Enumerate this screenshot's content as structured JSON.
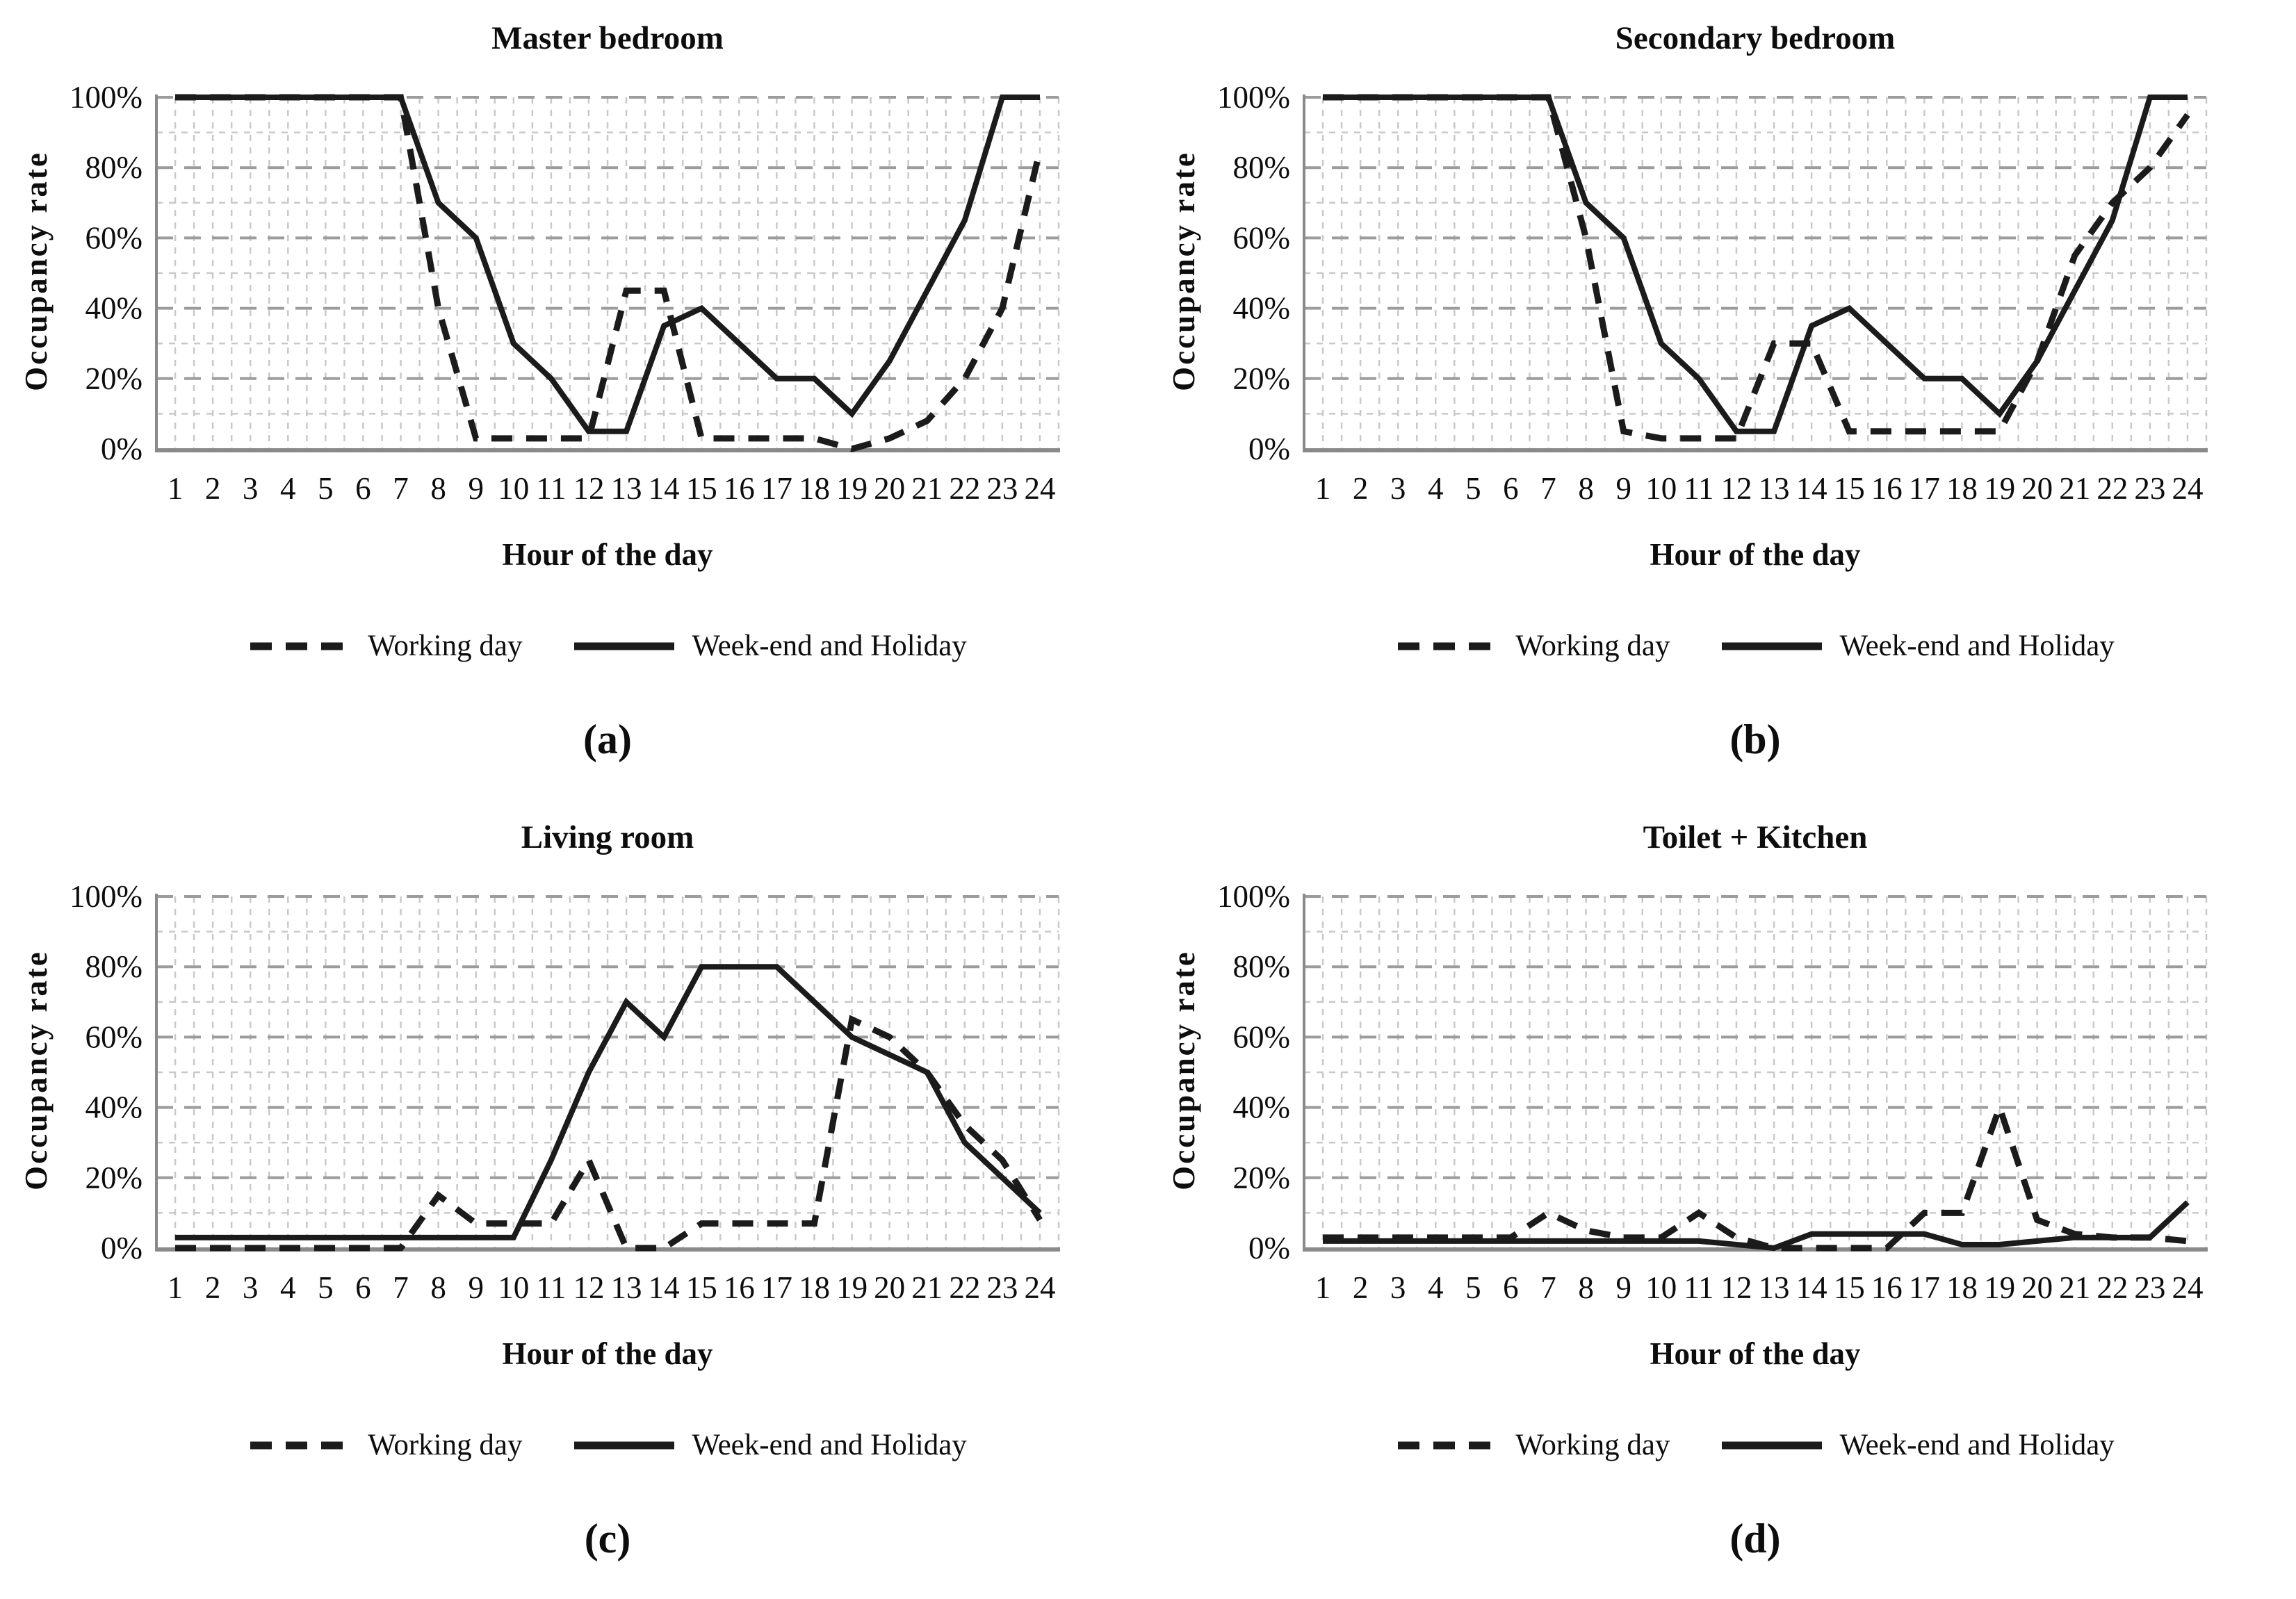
{
  "figure": {
    "background": "#ffffff",
    "line_color": "#1b1b1b",
    "grid_minor_color": "#c9c9c9",
    "grid_major_color": "#9c9c9c",
    "axis_color": "#8a8a8a"
  },
  "axes": {
    "xlabel": "Hour of the day",
    "ylabel": "Occupancy rate",
    "yticks": [
      0,
      20,
      40,
      60,
      80,
      100
    ],
    "ytick_suffix": "%"
  },
  "legend": {
    "working_label": "Working day",
    "weekend_label": "Week-end and Holiday"
  },
  "chart_data": [
    {
      "type": "line",
      "title": "Master bedroom",
      "caption": "(a)",
      "xlabel": "Hour of the day",
      "ylabel": "Occupancy rate",
      "ylim": [
        0,
        100
      ],
      "grid": true,
      "legend_position": "below",
      "x": [
        1,
        2,
        3,
        4,
        5,
        6,
        7,
        8,
        9,
        10,
        11,
        12,
        13,
        14,
        15,
        16,
        17,
        18,
        19,
        20,
        21,
        22,
        23,
        24
      ],
      "series": [
        {
          "name": "Working day",
          "style": "dashed",
          "values": [
            100,
            100,
            100,
            100,
            100,
            100,
            100,
            40,
            3,
            3,
            3,
            3,
            45,
            45,
            3,
            3,
            3,
            3,
            0,
            3,
            8,
            20,
            40,
            85
          ]
        },
        {
          "name": "Week-end and Holiday",
          "style": "solid",
          "values": [
            100,
            100,
            100,
            100,
            100,
            100,
            100,
            70,
            60,
            30,
            20,
            5,
            5,
            35,
            40,
            30,
            20,
            20,
            10,
            25,
            45,
            65,
            100,
            100
          ]
        }
      ]
    },
    {
      "type": "line",
      "title": "Secondary bedroom",
      "caption": "(b)",
      "xlabel": "Hour of the day",
      "ylabel": "Occupancy rate",
      "ylim": [
        0,
        100
      ],
      "grid": true,
      "legend_position": "below",
      "x": [
        1,
        2,
        3,
        4,
        5,
        6,
        7,
        8,
        9,
        10,
        11,
        12,
        13,
        14,
        15,
        16,
        17,
        18,
        19,
        20,
        21,
        22,
        23,
        24
      ],
      "series": [
        {
          "name": "Working day",
          "style": "dashed",
          "values": [
            100,
            100,
            100,
            100,
            100,
            100,
            100,
            60,
            5,
            3,
            3,
            3,
            30,
            30,
            5,
            5,
            5,
            5,
            5,
            25,
            55,
            70,
            80,
            95
          ]
        },
        {
          "name": "Week-end and Holiday",
          "style": "solid",
          "values": [
            100,
            100,
            100,
            100,
            100,
            100,
            100,
            70,
            60,
            30,
            20,
            5,
            5,
            35,
            40,
            30,
            20,
            20,
            10,
            25,
            45,
            65,
            100,
            100
          ]
        }
      ]
    },
    {
      "type": "line",
      "title": "Living room",
      "caption": "(c)",
      "xlabel": "Hour of the day",
      "ylabel": "Occupancy rate",
      "ylim": [
        0,
        100
      ],
      "grid": true,
      "legend_position": "below",
      "x": [
        1,
        2,
        3,
        4,
        5,
        6,
        7,
        8,
        9,
        10,
        11,
        12,
        13,
        14,
        15,
        16,
        17,
        18,
        19,
        20,
        21,
        22,
        23,
        24
      ],
      "series": [
        {
          "name": "Working day",
          "style": "dashed",
          "values": [
            0,
            0,
            0,
            0,
            0,
            0,
            0,
            15,
            7,
            7,
            7,
            25,
            0,
            0,
            7,
            7,
            7,
            7,
            65,
            60,
            50,
            35,
            25,
            8
          ]
        },
        {
          "name": "Week-end and Holiday",
          "style": "solid",
          "values": [
            3,
            3,
            3,
            3,
            3,
            3,
            3,
            3,
            3,
            3,
            25,
            50,
            70,
            60,
            80,
            80,
            80,
            70,
            60,
            55,
            50,
            30,
            20,
            10
          ]
        }
      ]
    },
    {
      "type": "line",
      "title": "Toilet + Kitchen",
      "caption": "(d)",
      "xlabel": "Hour of the day",
      "ylabel": "Occupancy rate",
      "ylim": [
        0,
        100
      ],
      "grid": true,
      "legend_position": "below",
      "x": [
        1,
        2,
        3,
        4,
        5,
        6,
        7,
        8,
        9,
        10,
        11,
        12,
        13,
        14,
        15,
        16,
        17,
        18,
        19,
        20,
        21,
        22,
        23,
        24
      ],
      "series": [
        {
          "name": "Working day",
          "style": "dashed",
          "values": [
            3,
            3,
            3,
            3,
            3,
            3,
            10,
            5,
            3,
            3,
            10,
            3,
            0,
            0,
            0,
            0,
            10,
            10,
            40,
            8,
            4,
            3,
            3,
            2
          ]
        },
        {
          "name": "Week-end and Holiday",
          "style": "solid",
          "values": [
            2,
            2,
            2,
            2,
            2,
            2,
            2,
            2,
            2,
            2,
            2,
            1,
            0,
            4,
            4,
            4,
            4,
            1,
            1,
            2,
            3,
            3,
            3,
            13
          ]
        }
      ]
    }
  ]
}
